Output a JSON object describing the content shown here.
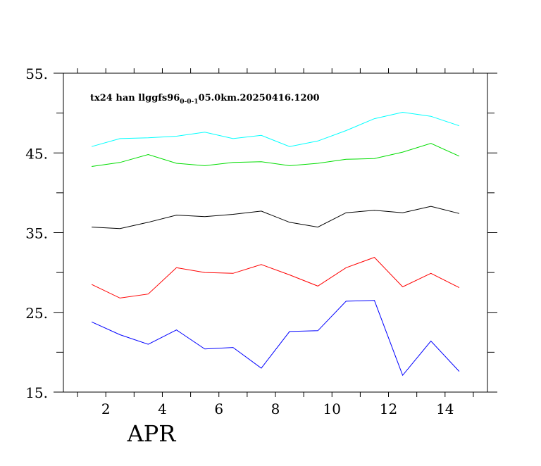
{
  "chart_data": {
    "type": "line",
    "title_main": "tx24 han llggfs96",
    "title_sub": "0-0-1",
    "title_tail": "05.0km.20250416.1200",
    "xlabel": "APR",
    "ylabel": "",
    "x": [
      1.5,
      2.5,
      3.5,
      4.5,
      5.5,
      6.5,
      7.5,
      8.5,
      9.5,
      10.5,
      11.5,
      12.5,
      13.5,
      14.5
    ],
    "xlim": [
      0.5,
      15.5
    ],
    "ylim": [
      15,
      55
    ],
    "x_ticks": [
      2,
      4,
      6,
      8,
      10,
      12,
      14
    ],
    "x_tick_labels": [
      "2",
      "4",
      "6",
      "8",
      "10",
      "12",
      "14"
    ],
    "y_ticks": [
      15,
      25,
      35,
      45,
      55
    ],
    "y_tick_labels": [
      "15.",
      "25.",
      "35.",
      "45.",
      "55."
    ],
    "grid": false,
    "series": [
      {
        "color": "#00ffff",
        "values": [
          45.8,
          46.8,
          46.9,
          47.1,
          47.6,
          46.8,
          47.2,
          45.8,
          46.5,
          47.8,
          49.3,
          50.1,
          49.6,
          48.4
        ]
      },
      {
        "color": "#00dd00",
        "values": [
          43.3,
          43.8,
          44.8,
          43.7,
          43.4,
          43.8,
          43.9,
          43.4,
          43.7,
          44.2,
          44.3,
          45.1,
          46.2,
          44.6
        ]
      },
      {
        "color": "#000000",
        "values": [
          35.7,
          35.5,
          36.3,
          37.2,
          37.0,
          37.3,
          37.7,
          36.3,
          35.7,
          37.5,
          37.8,
          37.5,
          38.3,
          37.4
        ]
      },
      {
        "color": "#ff0000",
        "values": [
          28.5,
          26.8,
          27.3,
          30.6,
          30.0,
          29.9,
          31.0,
          29.7,
          28.3,
          30.6,
          31.9,
          28.2,
          29.9,
          28.1
        ]
      },
      {
        "color": "#0000ff",
        "values": [
          23.8,
          22.2,
          21.0,
          22.8,
          20.4,
          20.6,
          18.0,
          22.6,
          22.7,
          26.4,
          26.5,
          17.1,
          21.4,
          17.6
        ]
      }
    ]
  }
}
